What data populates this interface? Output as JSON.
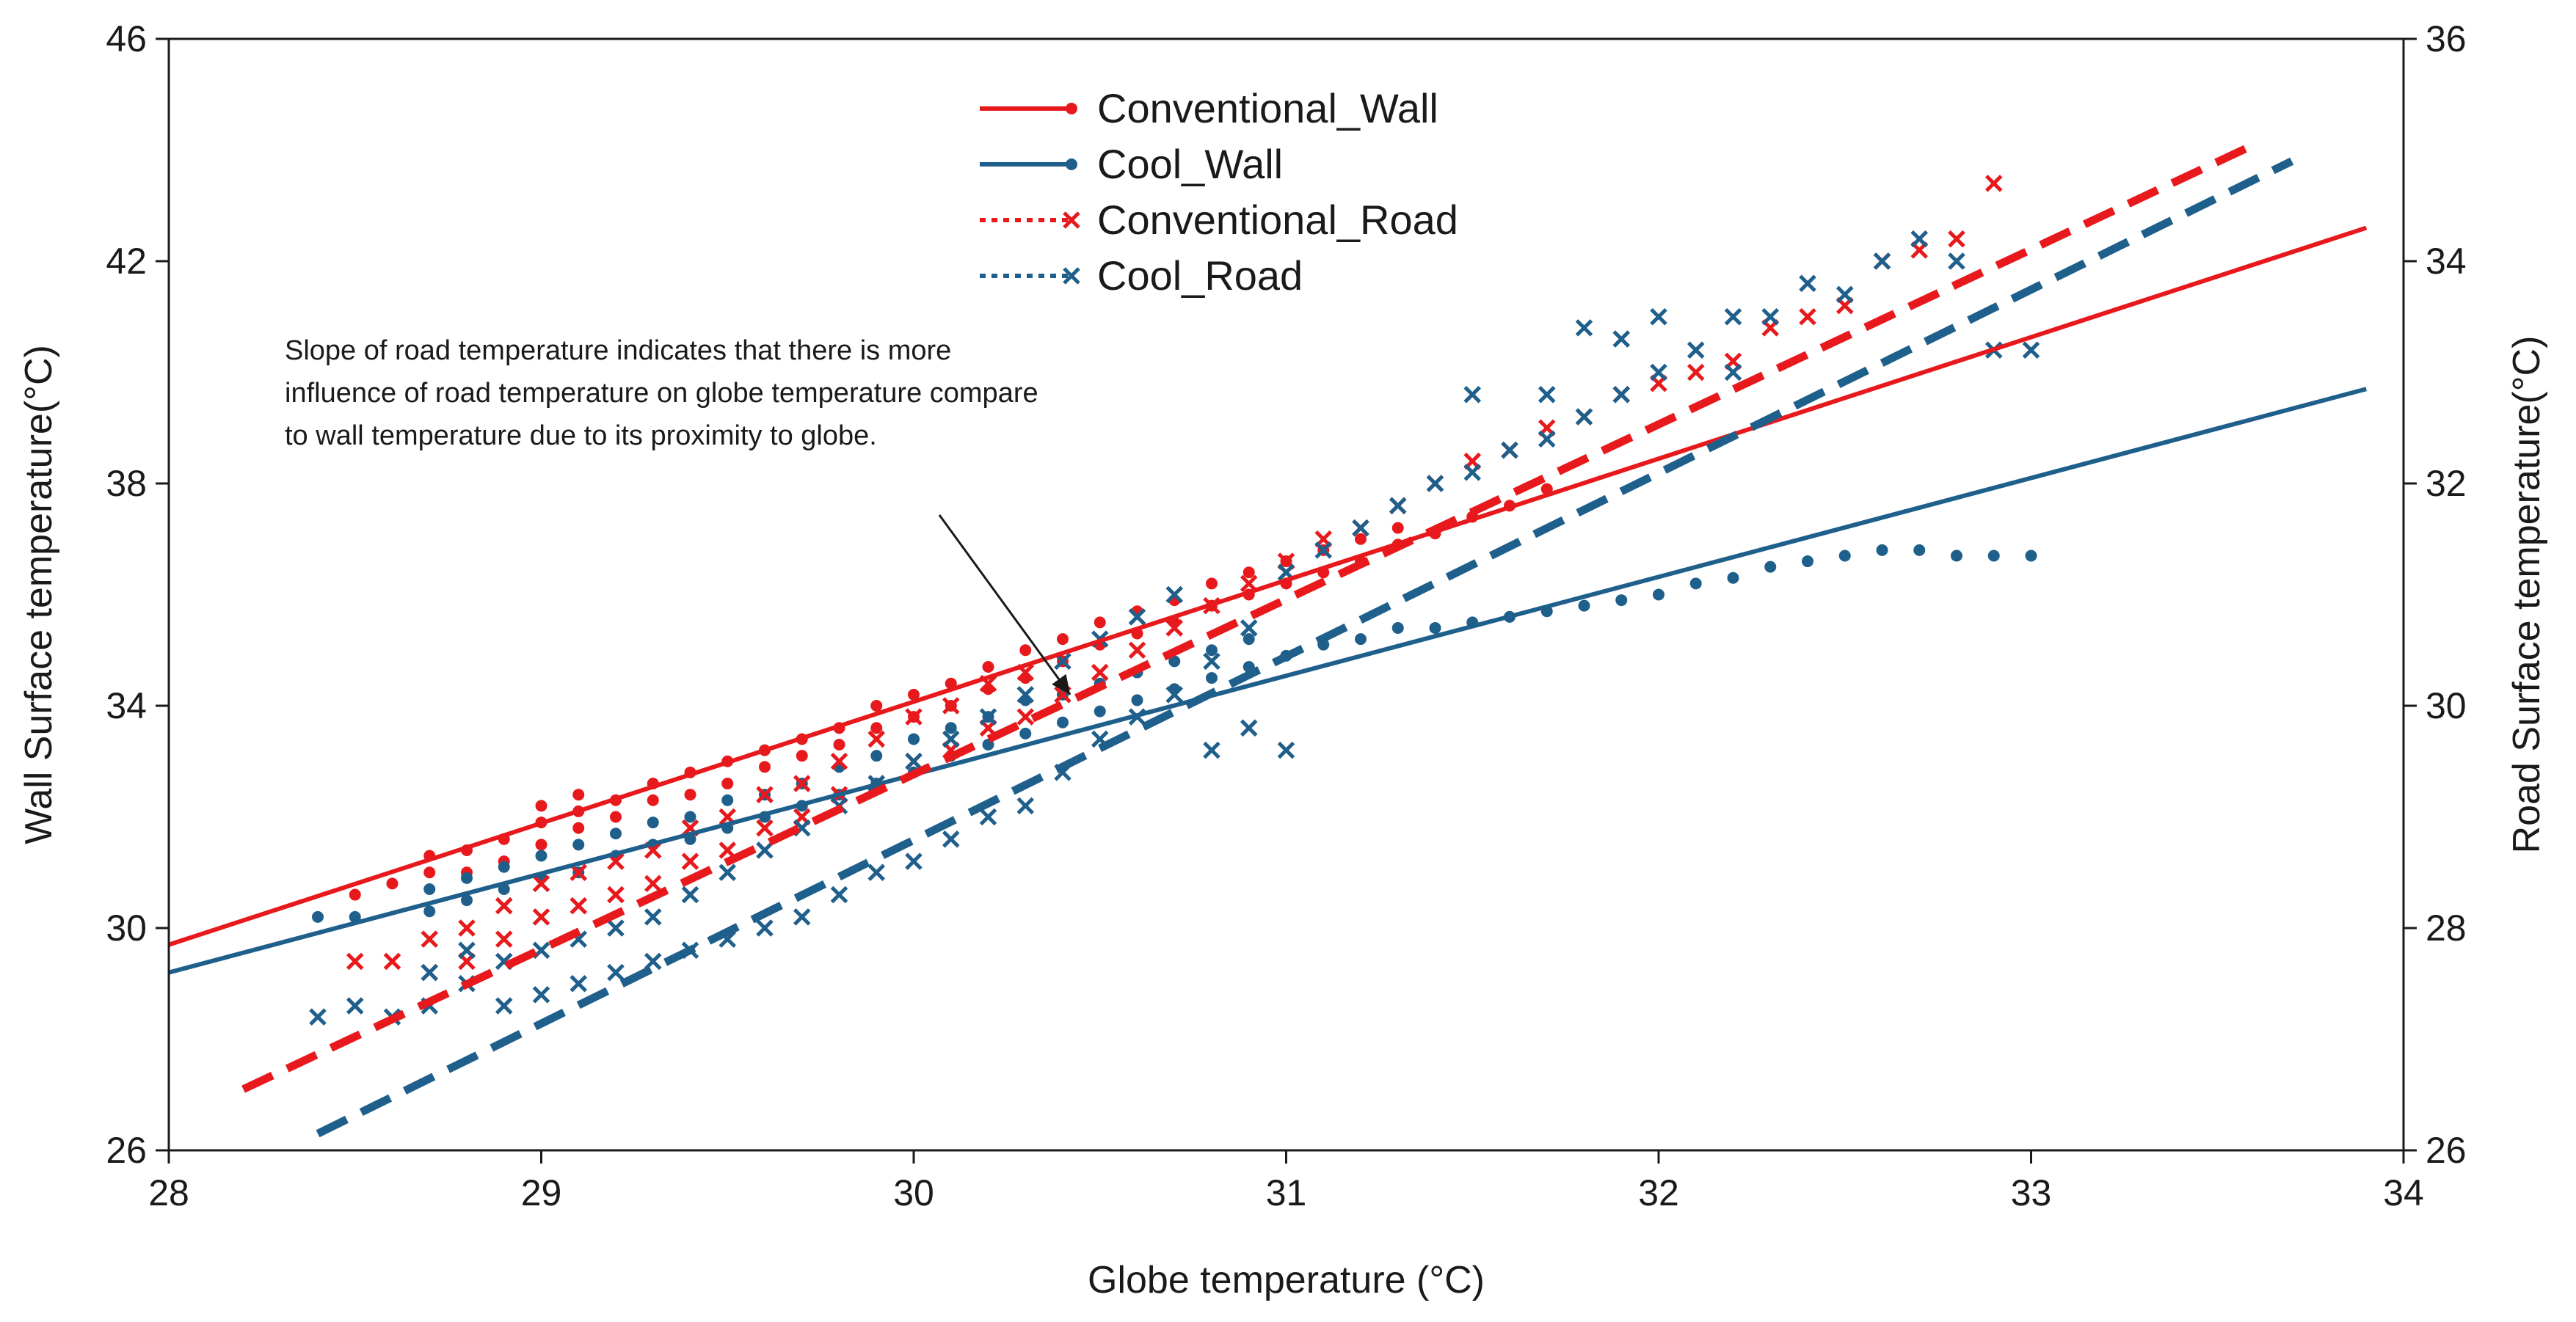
{
  "chart_data": {
    "type": "scatter",
    "title": "",
    "xlabel": "Globe temperature (°C)",
    "ylabel_left": "Wall Surface temperature(°C)",
    "ylabel_right": "Road Surface temperature(°C)",
    "xlim": [
      28,
      34
    ],
    "ylim_left": [
      26,
      46
    ],
    "ylim_right": [
      26,
      36
    ],
    "x_ticks": [
      "28",
      "29",
      "30",
      "31",
      "32",
      "33",
      "34"
    ],
    "y_left_ticks": [
      "26",
      "30",
      "34",
      "38",
      "42",
      "46"
    ],
    "y_right_ticks": [
      "26",
      "28",
      "30",
      "32",
      "34",
      "36"
    ],
    "grid": false,
    "legend_position": "top-center",
    "series": [
      {
        "name": "Conventional_Wall",
        "axis": "left",
        "color": "#e8191c",
        "marker": "dot",
        "line_style": "solid",
        "trendline": {
          "x": [
            28.0,
            33.9
          ],
          "y": [
            29.7,
            42.6
          ]
        },
        "points": [
          [
            28.5,
            30.6
          ],
          [
            28.6,
            30.8
          ],
          [
            28.7,
            31.0
          ],
          [
            28.7,
            31.3
          ],
          [
            28.8,
            31.0
          ],
          [
            28.8,
            31.4
          ],
          [
            28.9,
            31.2
          ],
          [
            28.9,
            31.6
          ],
          [
            29.0,
            31.5
          ],
          [
            29.0,
            31.9
          ],
          [
            29.0,
            32.2
          ],
          [
            29.1,
            31.8
          ],
          [
            29.1,
            32.1
          ],
          [
            29.1,
            32.4
          ],
          [
            29.2,
            32.0
          ],
          [
            29.2,
            32.3
          ],
          [
            29.3,
            32.3
          ],
          [
            29.3,
            32.6
          ],
          [
            29.4,
            32.4
          ],
          [
            29.4,
            32.8
          ],
          [
            29.5,
            32.6
          ],
          [
            29.5,
            33.0
          ],
          [
            29.6,
            32.9
          ],
          [
            29.6,
            33.2
          ],
          [
            29.7,
            33.1
          ],
          [
            29.7,
            33.4
          ],
          [
            29.8,
            33.3
          ],
          [
            29.8,
            33.6
          ],
          [
            29.9,
            33.6
          ],
          [
            29.9,
            34.0
          ],
          [
            30.0,
            33.8
          ],
          [
            30.0,
            34.2
          ],
          [
            30.1,
            34.0
          ],
          [
            30.1,
            34.4
          ],
          [
            30.2,
            34.3
          ],
          [
            30.2,
            34.7
          ],
          [
            30.3,
            34.5
          ],
          [
            30.3,
            35.0
          ],
          [
            30.4,
            34.8
          ],
          [
            30.4,
            35.2
          ],
          [
            30.5,
            35.1
          ],
          [
            30.5,
            35.5
          ],
          [
            30.6,
            35.3
          ],
          [
            30.6,
            35.7
          ],
          [
            30.7,
            35.5
          ],
          [
            30.7,
            35.9
          ],
          [
            30.8,
            35.8
          ],
          [
            30.8,
            36.2
          ],
          [
            30.9,
            36.0
          ],
          [
            30.9,
            36.4
          ],
          [
            31.0,
            36.2
          ],
          [
            31.0,
            36.6
          ],
          [
            31.1,
            36.4
          ],
          [
            31.1,
            36.8
          ],
          [
            31.2,
            36.6
          ],
          [
            31.2,
            37.0
          ],
          [
            31.3,
            36.9
          ],
          [
            31.3,
            37.2
          ],
          [
            31.4,
            37.1
          ],
          [
            31.5,
            37.4
          ],
          [
            31.6,
            37.6
          ],
          [
            31.7,
            37.9
          ]
        ]
      },
      {
        "name": "Cool_Wall",
        "axis": "left",
        "color": "#1f5f8b",
        "marker": "dot",
        "line_style": "solid",
        "trendline": {
          "x": [
            28.0,
            33.9
          ],
          "y": [
            29.2,
            39.7
          ]
        },
        "points": [
          [
            28.4,
            30.2
          ],
          [
            28.5,
            30.2
          ],
          [
            28.7,
            30.3
          ],
          [
            28.7,
            30.7
          ],
          [
            28.8,
            30.5
          ],
          [
            28.8,
            30.9
          ],
          [
            28.9,
            30.7
          ],
          [
            28.9,
            31.1
          ],
          [
            29.0,
            30.9
          ],
          [
            29.0,
            31.3
          ],
          [
            29.1,
            31.0
          ],
          [
            29.1,
            31.5
          ],
          [
            29.2,
            31.3
          ],
          [
            29.2,
            31.7
          ],
          [
            29.3,
            31.5
          ],
          [
            29.3,
            31.9
          ],
          [
            29.4,
            31.6
          ],
          [
            29.4,
            32.0
          ],
          [
            29.5,
            31.8
          ],
          [
            29.5,
            32.3
          ],
          [
            29.6,
            32.0
          ],
          [
            29.6,
            32.4
          ],
          [
            29.7,
            32.2
          ],
          [
            29.7,
            32.6
          ],
          [
            29.8,
            32.4
          ],
          [
            29.8,
            32.9
          ],
          [
            29.9,
            32.6
          ],
          [
            29.9,
            33.1
          ],
          [
            30.0,
            32.8
          ],
          [
            30.0,
            33.4
          ],
          [
            30.1,
            33.1
          ],
          [
            30.1,
            33.6
          ],
          [
            30.2,
            33.3
          ],
          [
            30.2,
            33.8
          ],
          [
            30.3,
            33.5
          ],
          [
            30.3,
            34.1
          ],
          [
            30.4,
            33.7
          ],
          [
            30.4,
            34.2
          ],
          [
            30.5,
            33.9
          ],
          [
            30.5,
            34.4
          ],
          [
            30.6,
            34.1
          ],
          [
            30.6,
            34.6
          ],
          [
            30.7,
            34.3
          ],
          [
            30.7,
            34.8
          ],
          [
            30.8,
            34.5
          ],
          [
            30.8,
            35.0
          ],
          [
            30.9,
            34.7
          ],
          [
            30.9,
            35.2
          ],
          [
            31.0,
            34.9
          ],
          [
            31.1,
            35.1
          ],
          [
            31.2,
            35.2
          ],
          [
            31.3,
            35.4
          ],
          [
            31.4,
            35.4
          ],
          [
            31.5,
            35.5
          ],
          [
            31.6,
            35.6
          ],
          [
            31.7,
            35.7
          ],
          [
            31.8,
            35.8
          ],
          [
            31.9,
            35.9
          ],
          [
            32.0,
            36.0
          ],
          [
            32.1,
            36.2
          ],
          [
            32.2,
            36.3
          ],
          [
            32.3,
            36.5
          ],
          [
            32.4,
            36.6
          ],
          [
            32.5,
            36.7
          ],
          [
            32.6,
            36.8
          ],
          [
            32.7,
            36.8
          ],
          [
            32.8,
            36.7
          ],
          [
            32.9,
            36.7
          ],
          [
            33.0,
            36.7
          ]
        ]
      },
      {
        "name": "Conventional_Road",
        "axis": "right",
        "color": "#e8191c",
        "marker": "x",
        "line_style": "dashed",
        "trendline": {
          "x": [
            28.2,
            33.6
          ],
          "y": [
            26.55,
            35.05
          ]
        },
        "points": [
          [
            28.5,
            27.7
          ],
          [
            28.6,
            27.7
          ],
          [
            28.7,
            27.6
          ],
          [
            28.7,
            27.9
          ],
          [
            28.8,
            27.7
          ],
          [
            28.8,
            28.0
          ],
          [
            28.9,
            27.9
          ],
          [
            28.9,
            28.2
          ],
          [
            29.0,
            28.1
          ],
          [
            29.0,
            28.4
          ],
          [
            29.1,
            28.2
          ],
          [
            29.1,
            28.5
          ],
          [
            29.2,
            28.3
          ],
          [
            29.2,
            28.6
          ],
          [
            29.3,
            28.4
          ],
          [
            29.3,
            28.7
          ],
          [
            29.4,
            28.6
          ],
          [
            29.4,
            28.9
          ],
          [
            29.5,
            28.7
          ],
          [
            29.5,
            29.0
          ],
          [
            29.6,
            28.9
          ],
          [
            29.6,
            29.2
          ],
          [
            29.7,
            29.0
          ],
          [
            29.7,
            29.3
          ],
          [
            29.8,
            29.2
          ],
          [
            29.8,
            29.5
          ],
          [
            29.9,
            29.3
          ],
          [
            29.9,
            29.7
          ],
          [
            30.0,
            29.5
          ],
          [
            30.0,
            29.9
          ],
          [
            30.1,
            29.6
          ],
          [
            30.1,
            30.0
          ],
          [
            30.2,
            29.8
          ],
          [
            30.2,
            30.2
          ],
          [
            30.3,
            29.9
          ],
          [
            30.3,
            30.3
          ],
          [
            30.4,
            30.1
          ],
          [
            30.5,
            30.3
          ],
          [
            30.6,
            30.5
          ],
          [
            30.7,
            30.7
          ],
          [
            30.8,
            30.9
          ],
          [
            30.9,
            31.1
          ],
          [
            31.0,
            31.3
          ],
          [
            31.1,
            31.5
          ],
          [
            31.2,
            31.6
          ],
          [
            31.3,
            31.8
          ],
          [
            31.4,
            32.0
          ],
          [
            31.5,
            32.2
          ],
          [
            31.6,
            32.3
          ],
          [
            31.7,
            32.5
          ],
          [
            31.8,
            32.6
          ],
          [
            31.9,
            32.8
          ],
          [
            32.0,
            32.9
          ],
          [
            32.1,
            33.0
          ],
          [
            32.2,
            33.1
          ],
          [
            32.3,
            33.4
          ],
          [
            32.4,
            33.5
          ],
          [
            32.5,
            33.6
          ],
          [
            32.6,
            34.0
          ],
          [
            32.7,
            34.1
          ],
          [
            32.8,
            34.2
          ],
          [
            32.9,
            34.7
          ]
        ]
      },
      {
        "name": "Cool_Road",
        "axis": "right",
        "color": "#1f5f8b",
        "marker": "x",
        "line_style": "dashed",
        "trendline": {
          "x": [
            28.4,
            33.7
          ],
          "y": [
            26.15,
            34.9
          ]
        },
        "points": [
          [
            28.4,
            27.2
          ],
          [
            28.5,
            27.3
          ],
          [
            28.6,
            27.2
          ],
          [
            28.7,
            27.3
          ],
          [
            28.7,
            27.6
          ],
          [
            28.8,
            27.5
          ],
          [
            28.8,
            27.8
          ],
          [
            28.9,
            27.3
          ],
          [
            28.9,
            27.7
          ],
          [
            29.0,
            27.4
          ],
          [
            29.0,
            27.8
          ],
          [
            29.1,
            27.5
          ],
          [
            29.1,
            27.9
          ],
          [
            29.2,
            27.6
          ],
          [
            29.2,
            28.0
          ],
          [
            29.3,
            27.7
          ],
          [
            29.3,
            28.1
          ],
          [
            29.4,
            27.8
          ],
          [
            29.4,
            28.3
          ],
          [
            29.5,
            27.9
          ],
          [
            29.5,
            28.5
          ],
          [
            29.6,
            28.0
          ],
          [
            29.6,
            28.7
          ],
          [
            29.7,
            28.1
          ],
          [
            29.7,
            28.9
          ],
          [
            29.8,
            28.3
          ],
          [
            29.8,
            29.1
          ],
          [
            29.9,
            28.5
          ],
          [
            29.9,
            29.3
          ],
          [
            30.0,
            28.6
          ],
          [
            30.0,
            29.5
          ],
          [
            30.1,
            28.8
          ],
          [
            30.1,
            29.7
          ],
          [
            30.2,
            29.0
          ],
          [
            30.2,
            29.9
          ],
          [
            30.3,
            29.1
          ],
          [
            30.3,
            30.1
          ],
          [
            30.4,
            29.4
          ],
          [
            30.4,
            30.4
          ],
          [
            30.5,
            29.7
          ],
          [
            30.5,
            30.6
          ],
          [
            30.6,
            29.9
          ],
          [
            30.6,
            30.8
          ],
          [
            30.7,
            30.1
          ],
          [
            30.7,
            31.0
          ],
          [
            30.8,
            29.6
          ],
          [
            30.8,
            30.4
          ],
          [
            30.9,
            29.8
          ],
          [
            30.9,
            30.7
          ],
          [
            31.0,
            29.6
          ],
          [
            31.0,
            31.2
          ],
          [
            31.1,
            31.4
          ],
          [
            31.2,
            31.6
          ],
          [
            31.3,
            31.8
          ],
          [
            31.4,
            32.0
          ],
          [
            31.5,
            32.8
          ],
          [
            31.5,
            32.1
          ],
          [
            31.6,
            32.3
          ],
          [
            31.7,
            32.8
          ],
          [
            31.7,
            32.4
          ],
          [
            31.8,
            33.4
          ],
          [
            31.8,
            32.6
          ],
          [
            31.9,
            33.3
          ],
          [
            31.9,
            32.8
          ],
          [
            32.0,
            33.5
          ],
          [
            32.0,
            33.0
          ],
          [
            32.1,
            33.2
          ],
          [
            32.2,
            33.5
          ],
          [
            32.2,
            33.0
          ],
          [
            32.3,
            33.5
          ],
          [
            32.4,
            33.8
          ],
          [
            32.5,
            33.7
          ],
          [
            32.6,
            34.0
          ],
          [
            32.7,
            34.2
          ],
          [
            32.8,
            34.0
          ],
          [
            32.9,
            33.2
          ],
          [
            33.0,
            33.2
          ]
        ]
      }
    ],
    "annotations": [
      {
        "text_lines": [
          "Slope of road temperature indicates that there is more",
          "influence of road temperature on globe temperature compare",
          "to wall temperature due to its proximity to globe."
        ],
        "arrow_to": {
          "x": 30.42,
          "y_left": 34.2
        }
      }
    ]
  }
}
